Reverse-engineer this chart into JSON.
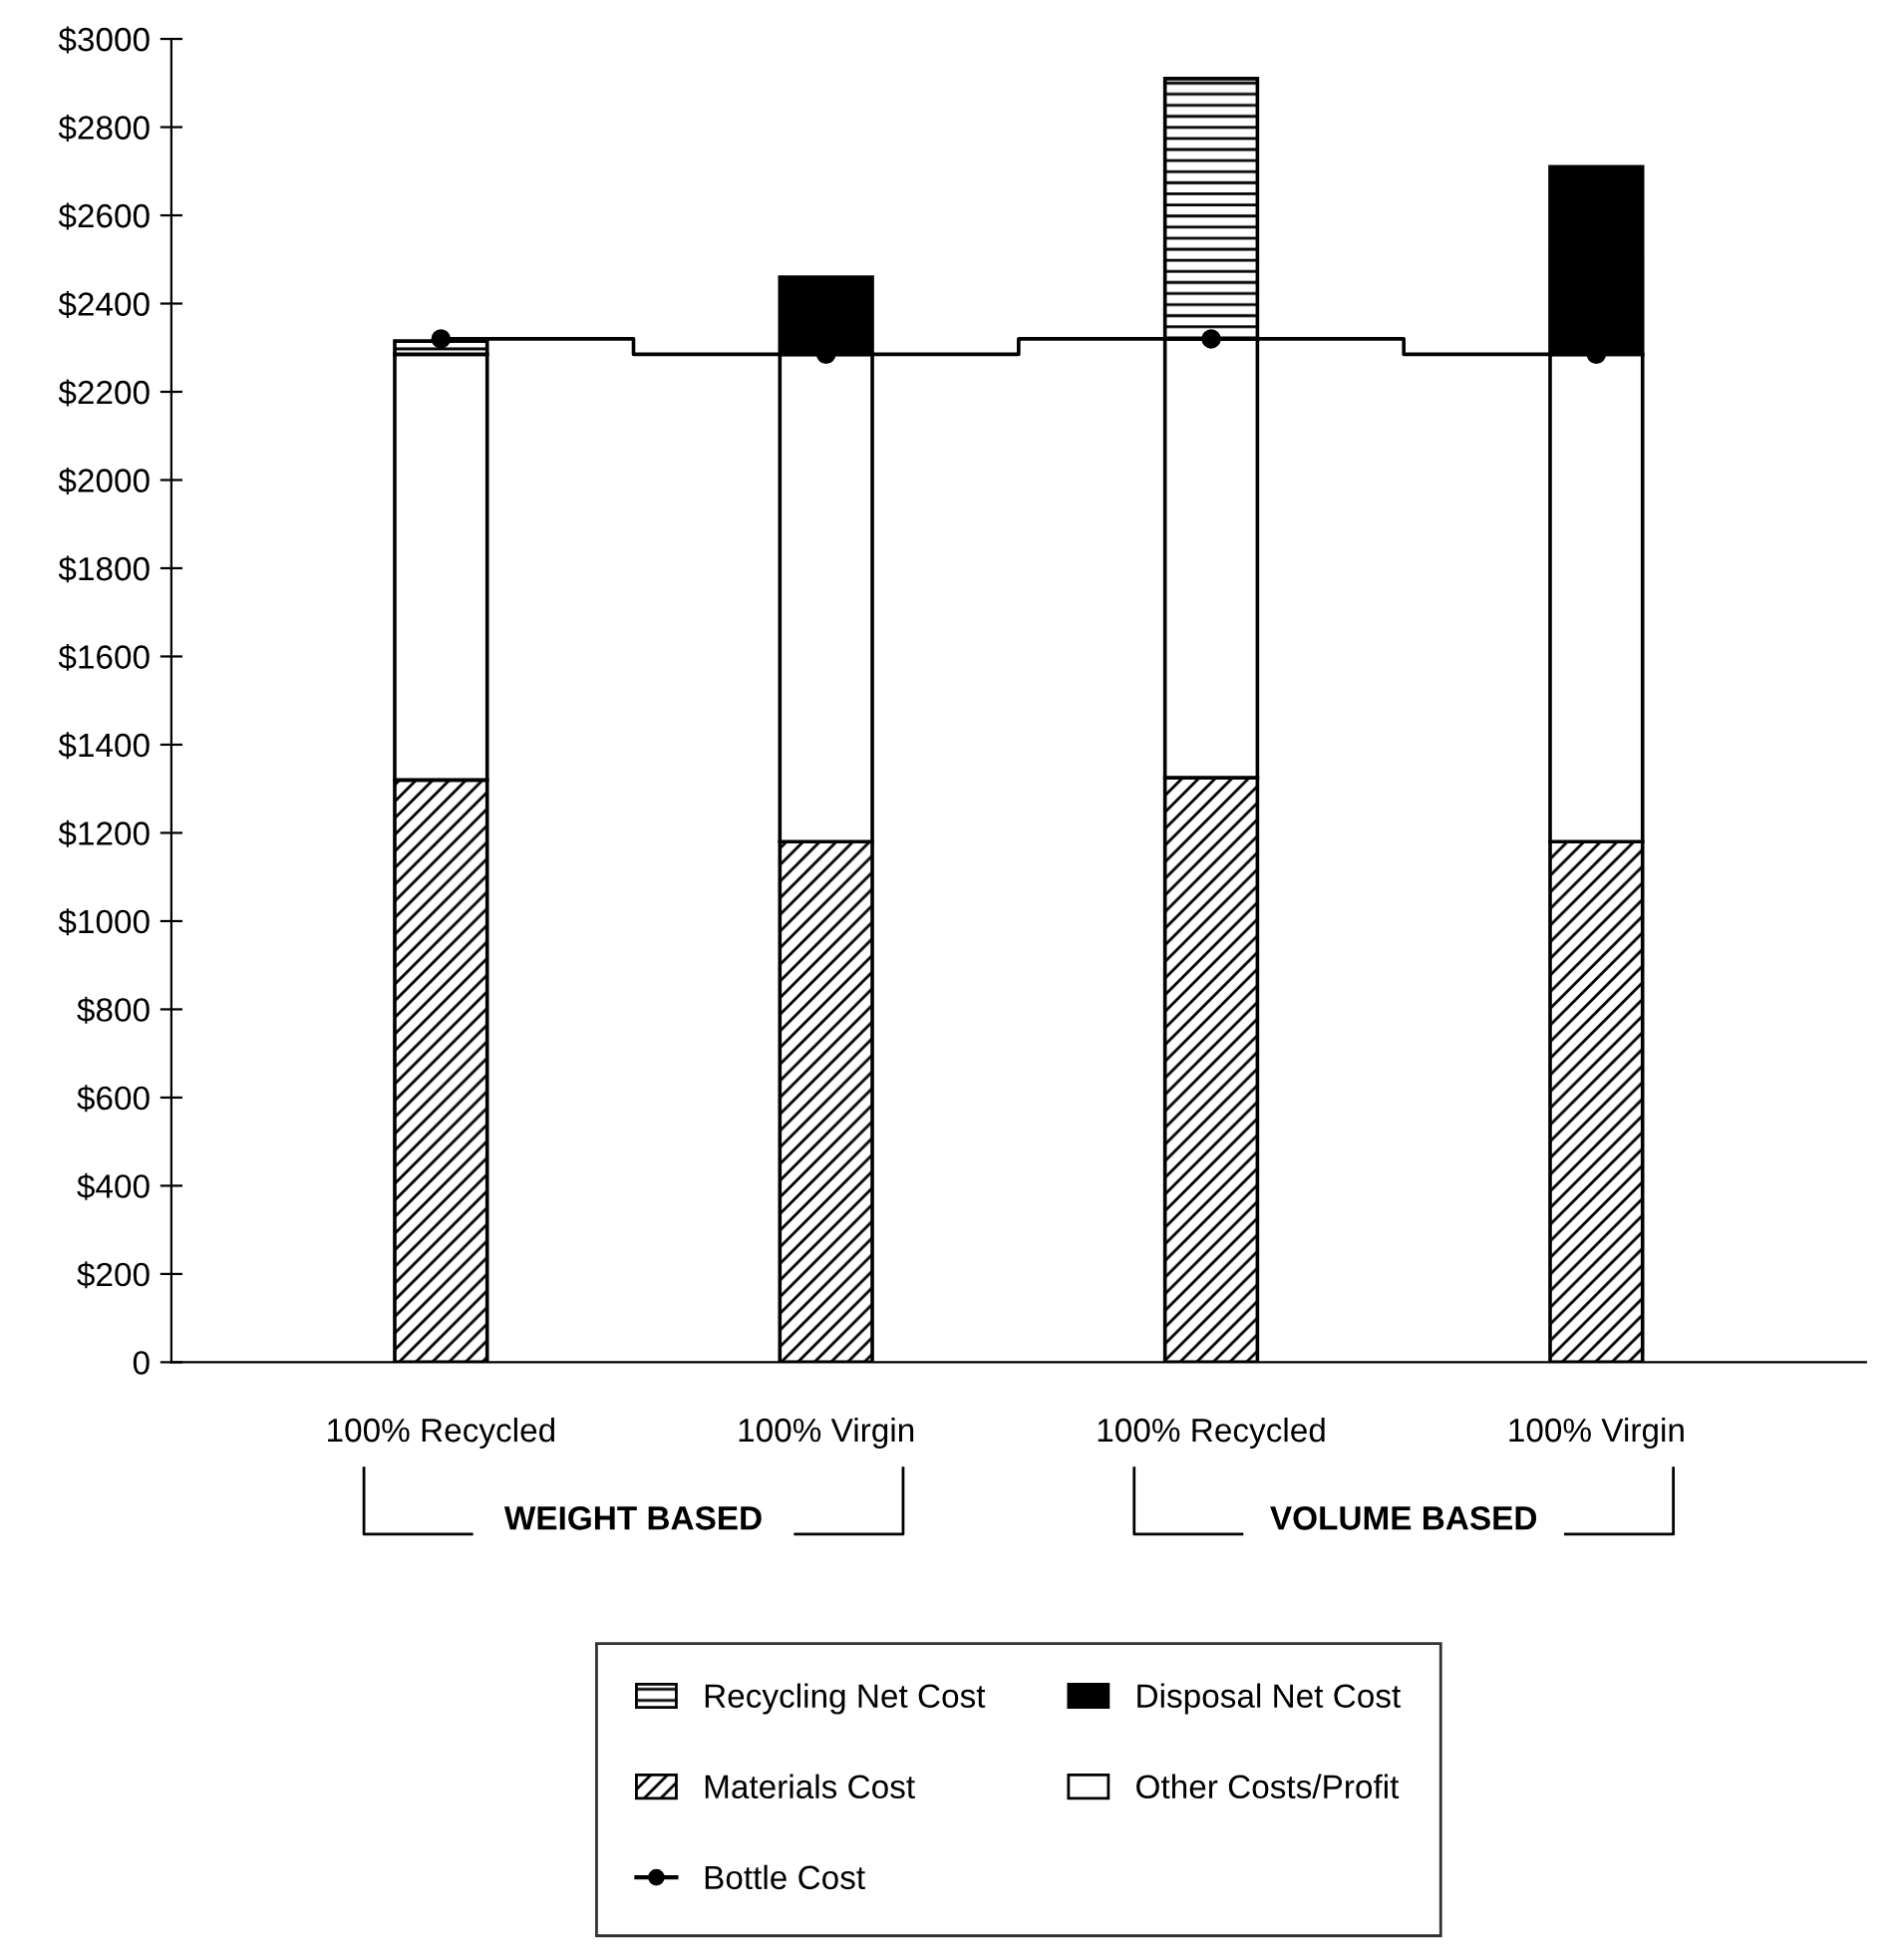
{
  "chart_data": {
    "type": "bar",
    "stacked": true,
    "categories": [
      "100% Recycled",
      "100% Virgin",
      "100% Recycled",
      "100% Virgin"
    ],
    "series": [
      {
        "name": "Materials Cost",
        "color": "#000000",
        "values": [
          1320,
          1180,
          1325,
          1180
        ]
      },
      {
        "name": "Other Costs/Profit",
        "color": "#ffffff",
        "values": [
          965,
          1105,
          995,
          1105
        ]
      },
      {
        "name": "Recycling Net Cost",
        "color": "#000000",
        "values": [
          30,
          null,
          590,
          null
        ]
      },
      {
        "name": "Disposal Net Cost",
        "color": "#000000",
        "values": [
          null,
          175,
          null,
          425
        ]
      },
      {
        "name": "Bottle Cost",
        "type": "step",
        "color": "#000000",
        "marker": "circle",
        "values": [
          2320,
          2285,
          2320,
          2285
        ]
      }
    ],
    "ylim": [
      0,
      3000
    ],
    "yticks": [
      {
        "value": 0,
        "label": "0"
      },
      {
        "value": 200,
        "label": "$200"
      },
      {
        "value": 400,
        "label": "$400"
      },
      {
        "value": 600,
        "label": "$600"
      },
      {
        "value": 800,
        "label": "$800"
      },
      {
        "value": 1000,
        "label": "$1000"
      },
      {
        "value": 1200,
        "label": "$1200"
      },
      {
        "value": 1400,
        "label": "$1400"
      },
      {
        "value": 1600,
        "label": "$1600"
      },
      {
        "value": 1800,
        "label": "$1800"
      },
      {
        "value": 2000,
        "label": "$2000"
      },
      {
        "value": 2200,
        "label": "$2200"
      },
      {
        "value": 2400,
        "label": "$2400"
      },
      {
        "value": 2600,
        "label": "$2600"
      },
      {
        "value": 2800,
        "label": "$2800"
      },
      {
        "value": 3000,
        "label": "$3000"
      }
    ],
    "annotations": [
      "WEIGHT BASED",
      "VOLUME BASED"
    ],
    "grid": false,
    "legend": "bottom"
  }
}
